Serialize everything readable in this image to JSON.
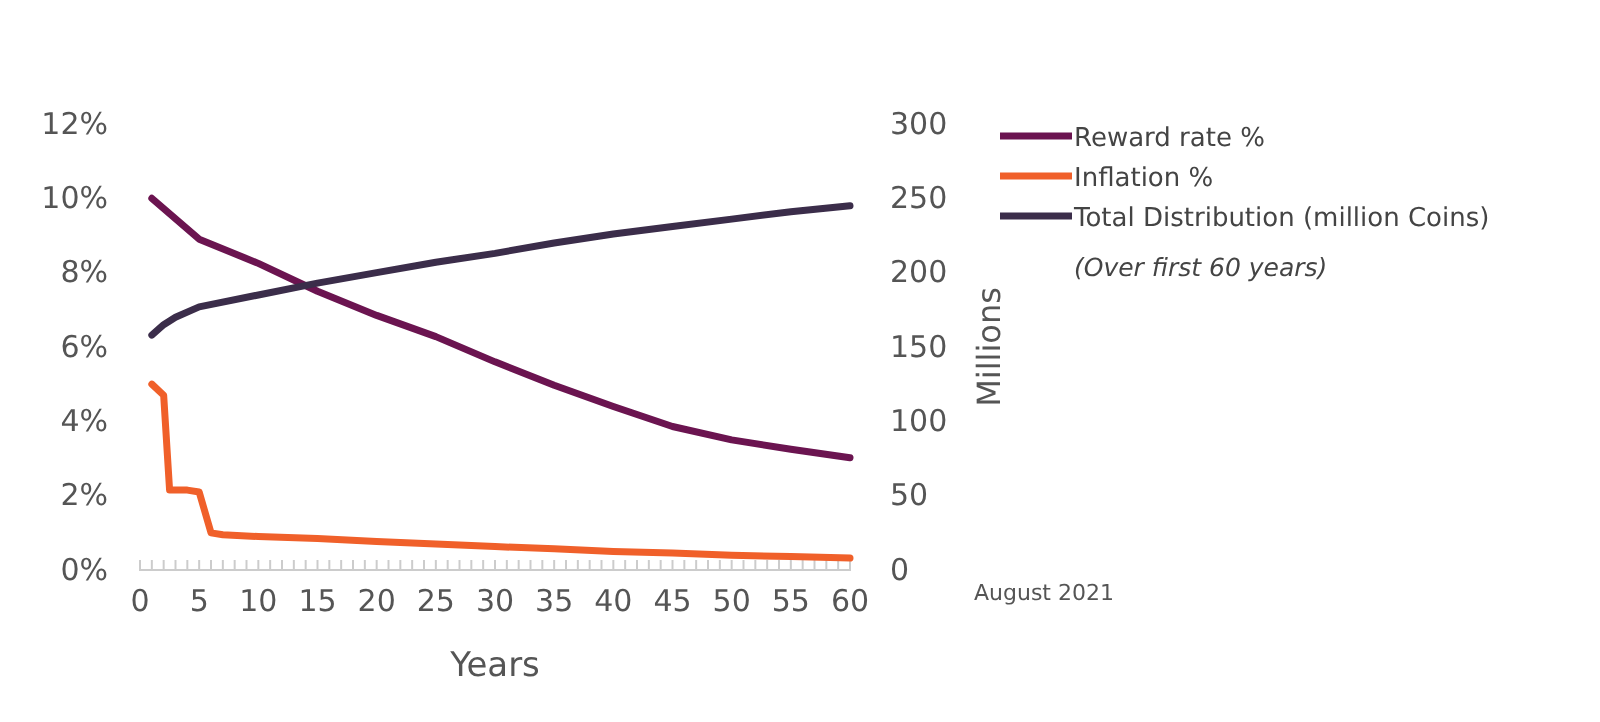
{
  "chart_data": {
    "type": "line",
    "xlabel": "Years",
    "y2label": "Millions",
    "xlim": [
      0,
      60
    ],
    "xticks": [
      0,
      {
        "value": 1,
        "label": null
      },
      {
        "value": 2,
        "label": null
      },
      {
        "value": 3,
        "label": null
      },
      {
        "value": 4,
        "label": null
      },
      5,
      {
        "value": 6,
        "label": null
      },
      {
        "value": 7,
        "label": null
      },
      {
        "value": 8,
        "label": null
      },
      {
        "value": 9,
        "label": null
      },
      10,
      {
        "value": 11,
        "label": null
      },
      {
        "value": 12,
        "label": null
      },
      {
        "value": 13,
        "label": null
      },
      {
        "value": 14,
        "label": null
      },
      15,
      {
        "value": 16,
        "label": null
      },
      {
        "value": 17,
        "label": null
      },
      {
        "value": 18,
        "label": null
      },
      {
        "value": 19,
        "label": null
      },
      20,
      {
        "value": 21,
        "label": null
      },
      {
        "value": 22,
        "label": null
      },
      {
        "value": 23,
        "label": null
      },
      {
        "value": 24,
        "label": null
      },
      25,
      {
        "value": 26,
        "label": null
      },
      {
        "value": 27,
        "label": null
      },
      {
        "value": 28,
        "label": null
      },
      {
        "value": 29,
        "label": null
      },
      30,
      {
        "value": 31,
        "label": null
      },
      {
        "value": 32,
        "label": null
      },
      {
        "value": 33,
        "label": null
      },
      {
        "value": 34,
        "label": null
      },
      35,
      {
        "value": 36,
        "label": null
      },
      {
        "value": 37,
        "label": null
      },
      {
        "value": 38,
        "label": null
      },
      {
        "value": 39,
        "label": null
      },
      40,
      {
        "value": 41,
        "label": null
      },
      {
        "value": 42,
        "label": null
      },
      {
        "value": 43,
        "label": null
      },
      {
        "value": 44,
        "label": null
      },
      45,
      {
        "value": 46,
        "label": null
      },
      {
        "value": 47,
        "label": null
      },
      {
        "value": 48,
        "label": null
      },
      {
        "value": 49,
        "label": null
      },
      50,
      {
        "value": 51,
        "label": null
      },
      {
        "value": 52,
        "label": null
      },
      {
        "value": 53,
        "label": null
      },
      {
        "value": 54,
        "label": null
      },
      55,
      {
        "value": 56,
        "label": null
      },
      {
        "value": 57,
        "label": null
      },
      {
        "value": 58,
        "label": null
      },
      {
        "value": 59,
        "label": null
      },
      60
    ],
    "ylim": [
      0,
      12
    ],
    "yticks": [
      {
        "value": 0,
        "label": "0%"
      },
      {
        "value": 2,
        "label": "2%"
      },
      {
        "value": 4,
        "label": "4%"
      },
      {
        "value": 6,
        "label": "6%"
      },
      {
        "value": 8,
        "label": "8%"
      },
      {
        "value": 10,
        "label": "10%"
      },
      {
        "value": 12,
        "label": "12%"
      }
    ],
    "y2lim": [
      0,
      300
    ],
    "y2ticks": [
      0,
      50,
      100,
      150,
      200,
      250,
      300
    ],
    "legend": "top right",
    "grid": false,
    "series": [
      {
        "name": "Reward rate %",
        "color": "#6b1450",
        "x": [
          1,
          5,
          10,
          15,
          20,
          25,
          30,
          35,
          40,
          45,
          50,
          55,
          60
        ],
        "values": [
          10.0,
          8.9,
          8.25,
          7.5,
          6.85,
          6.28,
          5.6,
          4.97,
          4.4,
          3.86,
          3.5,
          3.25,
          3.02
        ]
      },
      {
        "name": "Inflation %",
        "color": "#f0602a",
        "x": [
          1,
          2,
          2.5,
          4,
          5,
          6,
          7,
          10,
          15,
          20,
          25,
          30,
          35,
          40,
          45,
          50,
          55,
          60
        ],
        "values": [
          5.0,
          4.7,
          2.15,
          2.15,
          2.1,
          1.0,
          0.95,
          0.9,
          0.85,
          0.77,
          0.7,
          0.63,
          0.57,
          0.5,
          0.46,
          0.4,
          0.36,
          0.32
        ]
      },
      {
        "name": "Total Distribution (million Coins)",
        "color": "#3b2d4a",
        "axis": "y2",
        "x": [
          1,
          2,
          3,
          5,
          10,
          15,
          20,
          25,
          30,
          35,
          40,
          45,
          50,
          55,
          60
        ],
        "values": [
          158,
          165,
          170,
          177,
          185,
          193,
          200,
          207,
          213,
          220,
          226,
          231,
          236,
          241,
          245
        ]
      }
    ],
    "annotations": [
      "(Over first 60 years)",
      "August 2021"
    ]
  }
}
